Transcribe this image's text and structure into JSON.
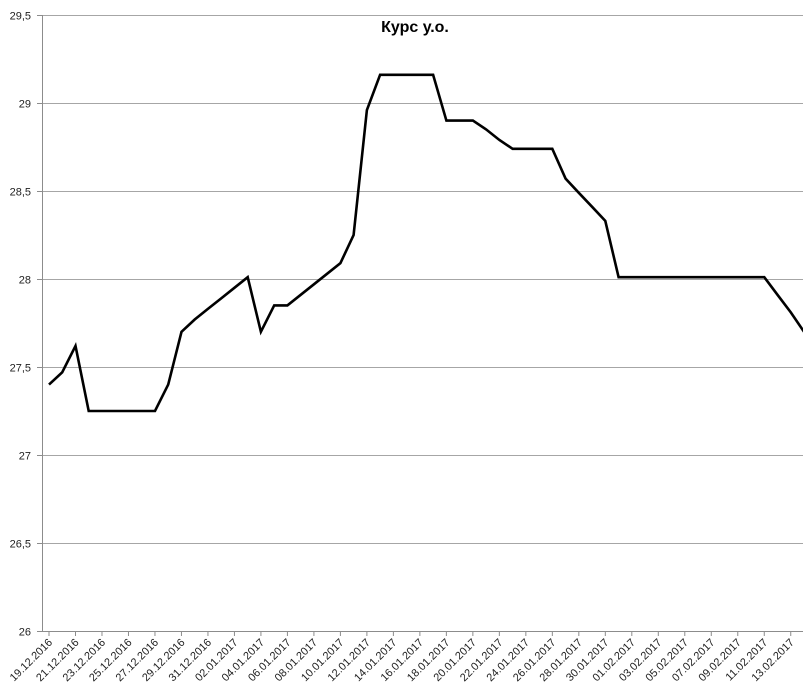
{
  "chart_data": {
    "type": "line",
    "title": "Курс у.о.",
    "xlabel": "",
    "ylabel": "",
    "ylim": [
      26,
      29.5
    ],
    "yticks": [
      26,
      26.5,
      27,
      27.5,
      28,
      28.5,
      29,
      29.5
    ],
    "ytick_labels": [
      "26",
      "26,5",
      "27",
      "27,5",
      "28",
      "28,5",
      "29",
      "29,5"
    ],
    "grid": true,
    "legend": "none",
    "line_color": "#000000",
    "x": [
      "19.12.2016",
      "20.12.2016",
      "21.12.2016",
      "22.12.2016",
      "23.12.2016",
      "24.12.2016",
      "25.12.2016",
      "26.12.2016",
      "27.12.2016",
      "28.12.2016",
      "29.12.2016",
      "30.12.2016",
      "31.12.2016",
      "01.01.2017",
      "02.01.2017",
      "03.01.2017",
      "04.01.2017",
      "05.01.2017",
      "06.01.2017",
      "07.01.2017",
      "08.01.2017",
      "09.01.2017",
      "10.01.2017",
      "11.01.2017",
      "12.01.2017",
      "13.01.2017",
      "14.01.2017",
      "15.01.2017",
      "16.01.2017",
      "17.01.2017",
      "18.01.2017",
      "19.01.2017",
      "20.01.2017",
      "21.01.2017",
      "22.01.2017",
      "23.01.2017",
      "24.01.2017",
      "25.01.2017",
      "26.01.2017",
      "27.01.2017",
      "28.01.2017",
      "29.01.2017",
      "30.01.2017",
      "31.01.2017",
      "01.02.2017",
      "02.02.2017",
      "03.02.2017",
      "04.02.2017",
      "05.02.2017",
      "06.02.2017",
      "07.02.2017",
      "08.02.2017",
      "09.02.2017",
      "10.02.2017",
      "11.02.2017",
      "12.02.2017",
      "13.02.2017",
      "14.02.2017"
    ],
    "x_tick_labels": [
      "19.12.2016",
      "21.12.2016",
      "23.12.2016",
      "25.12.2016",
      "27.12.2016",
      "29.12.2016",
      "31.12.2016",
      "02.01.2017",
      "04.01.2017",
      "06.01.2017",
      "08.01.2017",
      "10.01.2017",
      "12.01.2017",
      "14.01.2017",
      "16.01.2017",
      "18.01.2017",
      "20.01.2017",
      "22.01.2017",
      "24.01.2017",
      "26.01.2017",
      "28.01.2017",
      "30.01.2017",
      "01.02.2017",
      "03.02.2017",
      "05.02.2017",
      "07.02.2017",
      "09.02.2017",
      "11.02.2017",
      "13.02.2017"
    ],
    "series": [
      {
        "values": [
          27.4,
          27.47,
          27.62,
          27.25,
          27.25,
          27.25,
          27.25,
          27.25,
          27.25,
          27.4,
          27.7,
          27.77,
          27.83,
          27.89,
          27.95,
          28.01,
          27.7,
          27.85,
          27.85,
          27.91,
          27.97,
          28.03,
          28.09,
          28.25,
          28.96,
          29.16,
          29.16,
          29.16,
          29.16,
          29.16,
          28.9,
          28.9,
          28.9,
          28.85,
          28.79,
          28.74,
          28.74,
          28.74,
          28.74,
          28.57,
          28.49,
          28.41,
          28.33,
          28.01,
          28.01,
          28.01,
          28.01,
          28.01,
          28.01,
          28.01,
          28.01,
          28.01,
          28.01,
          28.01,
          28.01,
          27.91,
          27.81,
          27.7
        ]
      }
    ]
  }
}
